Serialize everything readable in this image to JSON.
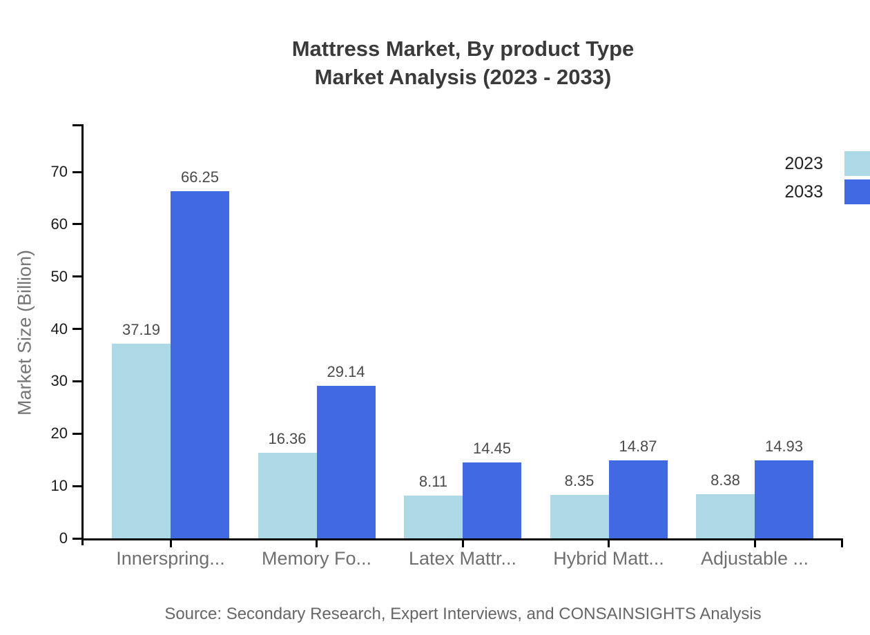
{
  "title": {
    "line1": "Mattress Market, By product Type",
    "line2": "Market Analysis (2023 - 2033)"
  },
  "source": "Source: Secondary Research, Expert Interviews, and CONSAINSIGHTS Analysis",
  "chart_data": {
    "type": "bar",
    "title": "Mattress Market, By product Type Market Analysis (2023 - 2033)",
    "categories": [
      "Innerspring...",
      "Memory Fo...",
      "Latex Mattr...",
      "Hybrid Matt...",
      "Adjustable ..."
    ],
    "series": [
      {
        "name": "2023",
        "color": "#ADD8E6",
        "values": [
          37.19,
          16.36,
          8.11,
          8.35,
          8.38
        ]
      },
      {
        "name": "2033",
        "color": "#4169E1",
        "values": [
          66.25,
          29.14,
          14.45,
          14.87,
          14.93
        ]
      }
    ],
    "xlabel": "",
    "ylabel": "Market Size (Billion)",
    "yticks": [
      0,
      10,
      20,
      30,
      40,
      50,
      60,
      70
    ],
    "ylim": [
      0,
      79
    ],
    "grid": false,
    "legend_position": "right-edge",
    "bar_value_labels": true
  },
  "colors": {
    "series_2023": "#ADD8E6",
    "series_2033": "#4169E1",
    "title_text": "#3a3a3a",
    "axis": "#000000",
    "tick_label": "#1b1b1b",
    "value_label": "#4a4a4a",
    "category_label": "#6f6f6f",
    "muted_text": "#757575"
  }
}
